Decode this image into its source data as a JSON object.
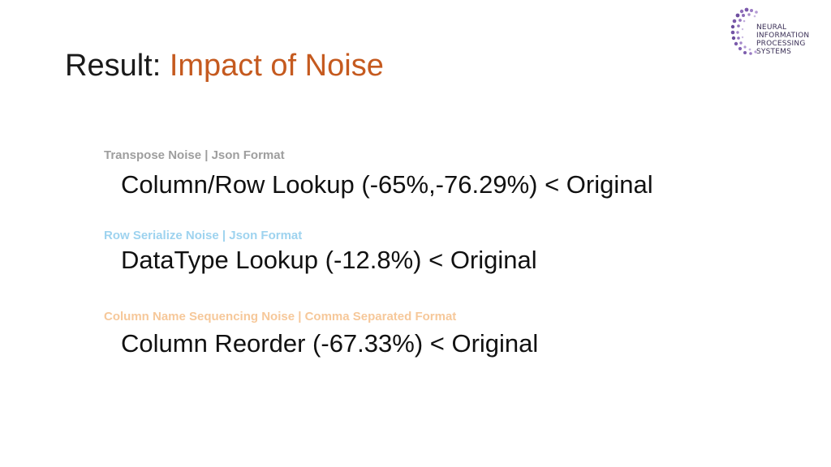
{
  "title": {
    "prefix": "Result: ",
    "highlight": "Impact of Noise"
  },
  "logo": {
    "lines": [
      "NEURAL",
      "INFORMATION",
      "PROCESSING",
      "SYSTEMS"
    ]
  },
  "items": [
    {
      "label": "Transpose Noise | Json Format",
      "label_color": "#9e9e9e",
      "text": "Column/Row Lookup (-65%,-76.29%) < Original"
    },
    {
      "label": "Row Serialize Noise | Json Format",
      "label_color": "#9ed3ef",
      "text": "DataType Lookup (-12.8%) < Original"
    },
    {
      "label": "Column Name Sequencing Noise | Comma Separated Format",
      "label_color": "#f6c89a",
      "text": "Column Reorder (-67.33%) < Original"
    }
  ]
}
